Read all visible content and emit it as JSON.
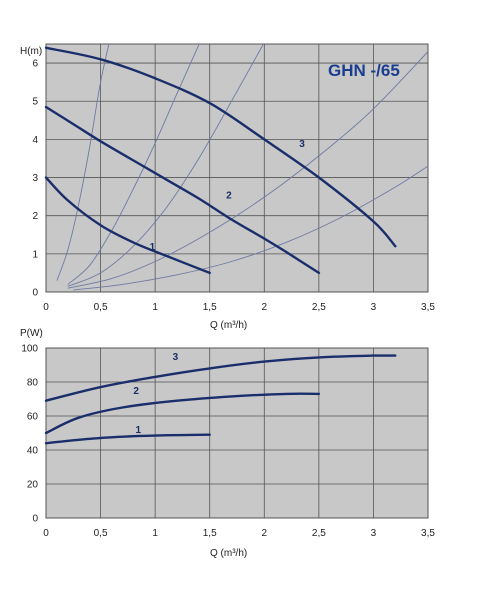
{
  "chart_data": [
    {
      "type": "line",
      "title": "GHN -/65",
      "xlabel": "Q (m³/h)",
      "ylabel": "H(m)",
      "xlim": [
        0,
        3.5
      ],
      "ylim": [
        0,
        6.5
      ],
      "x_ticks": [
        "0",
        "0,5",
        "1",
        "1,5",
        "2",
        "2,5",
        "3",
        "3,5"
      ],
      "y_ticks": [
        "0",
        "1",
        "2",
        "3",
        "4",
        "5",
        "6"
      ],
      "grid": true,
      "series": [
        {
          "name": "1",
          "x": [
            0,
            0.2,
            0.5,
            0.8,
            1.1,
            1.5
          ],
          "y": [
            3.0,
            2.4,
            1.75,
            1.3,
            0.95,
            0.5
          ]
        },
        {
          "name": "2",
          "x": [
            0,
            0.25,
            0.5,
            0.8,
            1.1,
            1.4,
            1.7,
            2.0,
            2.2,
            2.5
          ],
          "y": [
            4.85,
            4.4,
            3.95,
            3.45,
            2.95,
            2.45,
            1.9,
            1.4,
            1.05,
            0.5
          ]
        },
        {
          "name": "3",
          "x": [
            0,
            0.5,
            1.0,
            1.5,
            2.0,
            2.5,
            3.0,
            3.2
          ],
          "y": [
            6.4,
            6.1,
            5.6,
            4.95,
            4.0,
            3.0,
            1.85,
            1.2
          ]
        }
      ],
      "system_curves": [
        {
          "x": [
            0.1,
            0.2,
            0.3,
            0.4,
            0.5,
            0.6
          ],
          "y": [
            0.3,
            1.1,
            2.3,
            3.8,
            5.5,
            6.8
          ]
        },
        {
          "x": [
            0.2,
            0.4,
            0.6,
            0.8,
            1.0,
            1.2,
            1.45
          ],
          "y": [
            0.2,
            0.7,
            1.6,
            2.7,
            3.9,
            5.2,
            6.8
          ]
        },
        {
          "x": [
            0.2,
            0.5,
            0.8,
            1.1,
            1.4,
            1.7,
            2.05
          ],
          "y": [
            0.15,
            0.5,
            1.2,
            2.2,
            3.5,
            5.0,
            6.8
          ]
        },
        {
          "x": [
            0.2,
            0.6,
            1.0,
            1.4,
            1.8,
            2.2,
            2.6,
            3.0,
            3.5
          ],
          "y": [
            0.1,
            0.35,
            0.8,
            1.4,
            2.1,
            2.9,
            3.8,
            4.8,
            6.3
          ]
        },
        {
          "x": [
            0.25,
            0.7,
            1.2,
            1.7,
            2.2,
            2.7,
            3.2,
            3.5
          ],
          "y": [
            0.05,
            0.2,
            0.45,
            0.8,
            1.3,
            1.95,
            2.75,
            3.3
          ]
        }
      ]
    },
    {
      "type": "line",
      "xlabel": "Q (m³/h)",
      "ylabel": "P(W)",
      "xlim": [
        0,
        3.5
      ],
      "ylim": [
        0,
        100
      ],
      "x_ticks": [
        "0",
        "0,5",
        "1",
        "1,5",
        "2",
        "2,5",
        "3",
        "3,5"
      ],
      "y_ticks": [
        "0",
        "20",
        "40",
        "60",
        "80",
        "100"
      ],
      "grid": true,
      "series": [
        {
          "name": "1",
          "x": [
            0,
            0.3,
            0.6,
            1.0,
            1.5
          ],
          "y": [
            44,
            46,
            47.5,
            48.5,
            49
          ]
        },
        {
          "name": "2",
          "x": [
            0,
            0.3,
            0.7,
            1.2,
            1.7,
            2.2,
            2.5
          ],
          "y": [
            50,
            59,
            65,
            69,
            71.5,
            73,
            73
          ]
        },
        {
          "name": "3",
          "x": [
            0,
            0.5,
            1.0,
            1.5,
            2.0,
            2.5,
            3.0,
            3.2
          ],
          "y": [
            69,
            77,
            83,
            88,
            92,
            94.5,
            95.5,
            95.5
          ]
        }
      ]
    }
  ]
}
